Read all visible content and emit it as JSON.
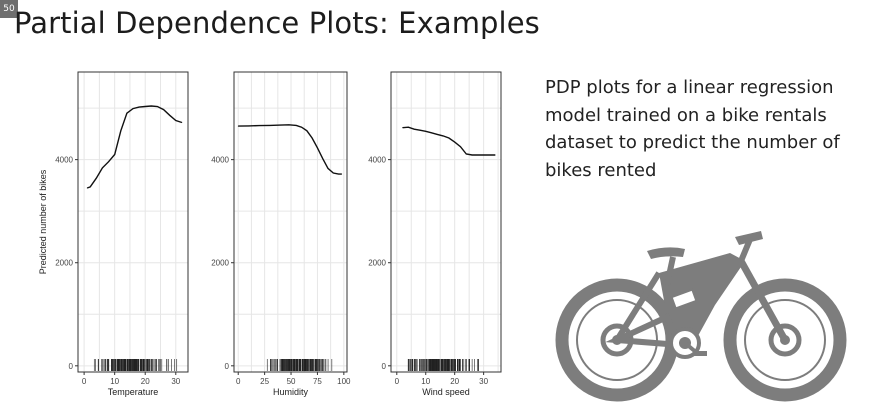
{
  "slide": {
    "number": "50",
    "title": "Partial Dependence Plots: Examples"
  },
  "description": {
    "lines": [
      "PDP plots for a linear regression",
      "model trained on a bike rentals",
      "dataset to predict the number of",
      "bikes rented"
    ]
  },
  "illustration": {
    "icon": "bicycle-icon",
    "color": "#7d7d7d"
  },
  "colors": {
    "panel_border": "#333333",
    "grid": "#e6e6e6",
    "line": "#111111",
    "rug": "#222222"
  },
  "chart_data": [
    {
      "type": "line",
      "ylabel": "Predicted number of bikes",
      "xlabel": "Temperature",
      "xlim": [
        -2,
        34
      ],
      "ylim": [
        -120,
        5700
      ],
      "xticks": [
        0,
        10,
        20,
        30
      ],
      "yticks": [
        0,
        2000,
        4000
      ],
      "x": [
        1,
        2,
        4,
        6,
        8,
        10,
        12,
        14,
        16,
        18,
        20,
        22,
        24,
        26,
        28,
        30,
        32
      ],
      "y": [
        3450,
        3470,
        3640,
        3840,
        3960,
        4100,
        4560,
        4900,
        4990,
        5020,
        5030,
        5040,
        5030,
        4970,
        4860,
        4760,
        4720
      ],
      "rug_range": [
        0,
        33
      ]
    },
    {
      "type": "line",
      "ylabel": "",
      "xlabel": "Humidity",
      "xlim": [
        -4,
        103
      ],
      "ylim": [
        -120,
        5700
      ],
      "xticks": [
        0,
        25,
        50,
        75,
        100
      ],
      "yticks": [
        0,
        2000,
        4000
      ],
      "x": [
        0,
        10,
        20,
        30,
        40,
        48,
        55,
        60,
        65,
        70,
        75,
        80,
        85,
        90,
        95,
        98
      ],
      "y": [
        4650,
        4655,
        4660,
        4665,
        4670,
        4675,
        4665,
        4630,
        4560,
        4420,
        4230,
        4020,
        3830,
        3740,
        3720,
        3720
      ],
      "rug_range": [
        20,
        97
      ]
    },
    {
      "type": "line",
      "ylabel": "",
      "xlabel": "Wind speed",
      "xlim": [
        -2,
        36
      ],
      "ylim": [
        -120,
        5700
      ],
      "xticks": [
        0,
        10,
        20,
        30
      ],
      "yticks": [
        0,
        2000,
        4000
      ],
      "x": [
        2,
        4,
        6,
        8,
        10,
        12,
        14,
        16,
        18,
        20,
        22,
        24,
        26,
        28,
        30,
        32,
        34
      ],
      "y": [
        4620,
        4630,
        4590,
        4570,
        4550,
        4520,
        4490,
        4460,
        4420,
        4340,
        4250,
        4110,
        4090,
        4090,
        4090,
        4090,
        4090
      ],
      "rug_range": [
        0,
        32
      ]
    }
  ]
}
